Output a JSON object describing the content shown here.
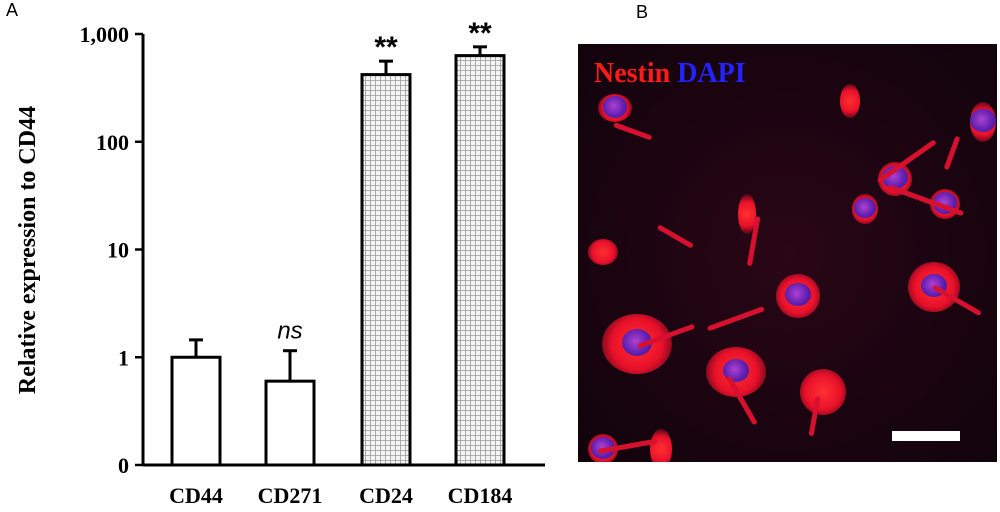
{
  "panels": {
    "a_label": "A",
    "b_label": "B"
  },
  "chart_data": {
    "type": "bar",
    "ylabel": "Relative expression to CD44",
    "yscale": "log",
    "ylim": [
      0,
      1000
    ],
    "yticks": [
      {
        "value": 0,
        "label": "0"
      },
      {
        "value": 1,
        "label": "1"
      },
      {
        "value": 10,
        "label": "10"
      },
      {
        "value": 100,
        "label": "100"
      },
      {
        "value": 1000,
        "label": "1,000"
      }
    ],
    "categories": [
      "CD44",
      "CD271",
      "CD24",
      "CD184"
    ],
    "values": [
      1.0,
      0.6,
      420,
      630
    ],
    "error_upper": [
      1.45,
      1.15,
      560,
      760
    ],
    "bar_fill": [
      "open",
      "open",
      "dotted",
      "dotted"
    ],
    "annotations": [
      "",
      "ns",
      "**",
      "**"
    ],
    "colors": {
      "bar_stroke": "#000000",
      "open_fill": "#ffffff",
      "dotted_fill": "#ececec"
    }
  },
  "micrograph": {
    "legend_words": [
      {
        "text": "Nestin",
        "color": "#ff1a1a"
      },
      {
        "text": "DAPI",
        "color": "#2323ff"
      }
    ],
    "scale_bar_color": "#ffffff"
  }
}
